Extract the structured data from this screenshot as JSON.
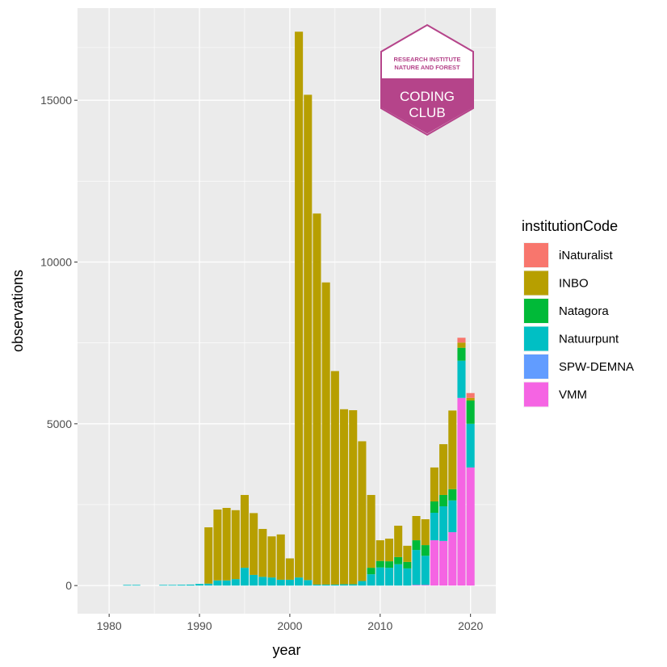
{
  "chart_data": {
    "type": "bar",
    "stacked": true,
    "xlabel": "year",
    "ylabel": "observations",
    "xlim": [
      1976.5,
      2022.8
    ],
    "ylim": [
      -870,
      17850
    ],
    "x_ticks": [
      1980,
      1990,
      2000,
      2010,
      2020
    ],
    "y_ticks": [
      0,
      5000,
      10000,
      15000
    ],
    "grid": true,
    "legend": {
      "title": "institutionCode",
      "position": "right",
      "entries": [
        "iNaturalist",
        "INBO",
        "Natagora",
        "Natuurpunt",
        "SPW-DEMNA",
        "VMM"
      ]
    },
    "colors": {
      "iNaturalist": "#F8766D",
      "INBO": "#B79F00",
      "Natagora": "#00BA38",
      "Natuurpunt": "#00BFC4",
      "SPW-DEMNA": "#619CFF",
      "VMM": "#F564E3"
    },
    "stack_order_bottom_to_top": [
      "VMM",
      "SPW-DEMNA",
      "Natuurpunt",
      "Natagora",
      "INBO",
      "iNaturalist"
    ],
    "bars": [
      {
        "year": 1982,
        "Natuurpunt": 20
      },
      {
        "year": 1983,
        "Natuurpunt": 20
      },
      {
        "year": 1986,
        "Natuurpunt": 20
      },
      {
        "year": 1987,
        "Natuurpunt": 20
      },
      {
        "year": 1988,
        "Natuurpunt": 25
      },
      {
        "year": 1989,
        "Natuurpunt": 30
      },
      {
        "year": 1990,
        "Natuurpunt": 50
      },
      {
        "year": 1991,
        "Natuurpunt": 60,
        "INBO": 1740
      },
      {
        "year": 1992,
        "Natuurpunt": 160,
        "INBO": 2190
      },
      {
        "year": 1993,
        "Natuurpunt": 160,
        "INBO": 2240
      },
      {
        "year": 1994,
        "Natuurpunt": 200,
        "INBO": 2130
      },
      {
        "year": 1995,
        "Natuurpunt": 550,
        "INBO": 2250
      },
      {
        "year": 1996,
        "Natuurpunt": 330,
        "INBO": 1910
      },
      {
        "year": 1997,
        "Natuurpunt": 270,
        "INBO": 1480
      },
      {
        "year": 1998,
        "Natuurpunt": 250,
        "INBO": 1270
      },
      {
        "year": 1999,
        "Natuurpunt": 180,
        "INBO": 1400
      },
      {
        "year": 2000,
        "Natuurpunt": 180,
        "INBO": 660
      },
      {
        "year": 2001,
        "Natuurpunt": 250,
        "INBO": 16870
      },
      {
        "year": 2002,
        "Natuurpunt": 170,
        "INBO": 15000
      },
      {
        "year": 2003,
        "Natuurpunt": 30,
        "INBO": 11470
      },
      {
        "year": 2004,
        "Natuurpunt": 30,
        "INBO": 9340
      },
      {
        "year": 2005,
        "Natuurpunt": 30,
        "INBO": 6600
      },
      {
        "year": 2006,
        "Natuurpunt": 40,
        "INBO": 5410
      },
      {
        "year": 2007,
        "Natuurpunt": 40,
        "INBO": 5380
      },
      {
        "year": 2008,
        "Natuurpunt": 140,
        "INBO": 4320
      },
      {
        "year": 2009,
        "Natuurpunt": 350,
        "Natagora": 200,
        "INBO": 2250
      },
      {
        "year": 2010,
        "Natuurpunt": 560,
        "Natagora": 200,
        "INBO": 640
      },
      {
        "year": 2011,
        "Natuurpunt": 550,
        "Natagora": 200,
        "INBO": 700
      },
      {
        "year": 2012,
        "Natuurpunt": 660,
        "Natagora": 220,
        "INBO": 970
      },
      {
        "year": 2013,
        "Natuurpunt": 530,
        "Natagora": 200,
        "INBO": 500
      },
      {
        "year": 2014,
        "VMM": 20,
        "Natuurpunt": 1080,
        "Natagora": 300,
        "INBO": 750
      },
      {
        "year": 2015,
        "VMM": 20,
        "Natuurpunt": 900,
        "Natagora": 330,
        "INBO": 800
      },
      {
        "year": 2016,
        "VMM": 1400,
        "Natuurpunt": 850,
        "Natagora": 350,
        "INBO": 1050
      },
      {
        "year": 2017,
        "VMM": 1380,
        "Natuurpunt": 1070,
        "Natagora": 350,
        "INBO": 1570
      },
      {
        "year": 2018,
        "VMM": 1650,
        "Natuurpunt": 980,
        "Natagora": 350,
        "INBO": 2430
      },
      {
        "year": 2019,
        "VMM": 5800,
        "Natuurpunt": 1150,
        "Natagora": 400,
        "INBO": 160,
        "iNaturalist": 150
      },
      {
        "year": 2020,
        "VMM": 3650,
        "Natuurpunt": 1350,
        "Natagora": 720,
        "INBO": 80,
        "iNaturalist": 150
      }
    ]
  },
  "logo": {
    "line1": "RESEARCH INSTITUTE",
    "line2": "NATURE AND FOREST",
    "line3": "CODING",
    "line4": "CLUB",
    "color": "#b5448a"
  }
}
